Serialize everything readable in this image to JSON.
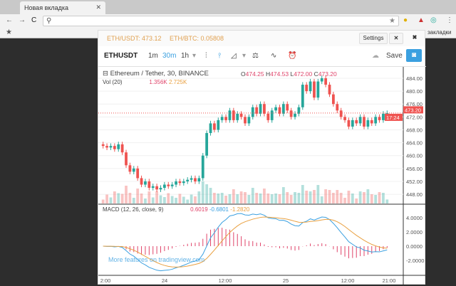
{
  "browser": {
    "tab_title": "Новая вкладка",
    "bookmarks_label": "закладки"
  },
  "header": {
    "eth_usdt": "ETH/USDT: 473.12",
    "eth_btc": "ETH/BTC: 0.05808",
    "settings": "Settings"
  },
  "toolbar": {
    "symbol": "ETHUSDT",
    "intervals": [
      "1m",
      "30m",
      "1h"
    ],
    "active_interval": "30m",
    "save": "Save"
  },
  "legend": {
    "title": "Ethereum / Tether, 30, BINANCE",
    "o_label": "O",
    "o": "474.25",
    "h_label": "H",
    "h": "474.53",
    "l_label": "L",
    "l": "472.00",
    "c_label": "C",
    "c": "473.20",
    "vol_label": "Vol (20)",
    "vol": "1.356K",
    "vol_ma": "2.725K",
    "macd_label": "MACD (12, 26, close, 9)",
    "macd_hist": "0.6019",
    "macd": "-0.6801",
    "macd_signal": "-1.2820"
  },
  "price_axis": [
    "484.00",
    "480.00",
    "476.00",
    "472.00",
    "468.00",
    "464.00",
    "460.00",
    "456.00",
    "452.00",
    "448.00"
  ],
  "last_price": "473.20",
  "countdown": "17:24",
  "macd_axis": [
    "4.0000",
    "2.0000",
    "0.0000",
    "-2.0000"
  ],
  "time_axis": [
    "2:00",
    "24",
    "12:00",
    "25",
    "12:00",
    "21:00"
  ],
  "watermark": "More features on tradingview.com",
  "colors": {
    "up": "#26a69a",
    "down": "#ef5350",
    "accent": "#3ba0e0"
  },
  "chart_data": {
    "type": "candlestick",
    "closes": [
      463,
      462.5,
      463,
      462,
      463.5,
      461,
      457,
      455,
      456,
      453,
      451,
      452,
      450,
      450.5,
      449.5,
      450,
      451,
      450.5,
      451,
      452,
      451.5,
      452,
      452.5,
      453,
      452,
      453,
      460,
      467,
      470,
      468,
      471,
      472,
      471,
      474,
      471,
      473,
      472,
      470,
      472,
      475,
      473,
      476,
      473,
      471,
      474,
      475,
      473,
      476,
      474,
      472,
      473,
      475,
      482,
      480,
      483,
      478,
      483,
      484,
      482,
      479,
      476,
      474,
      472,
      471,
      469,
      471,
      470,
      472,
      469,
      471,
      470,
      472,
      471,
      473,
      473.2
    ]
  }
}
